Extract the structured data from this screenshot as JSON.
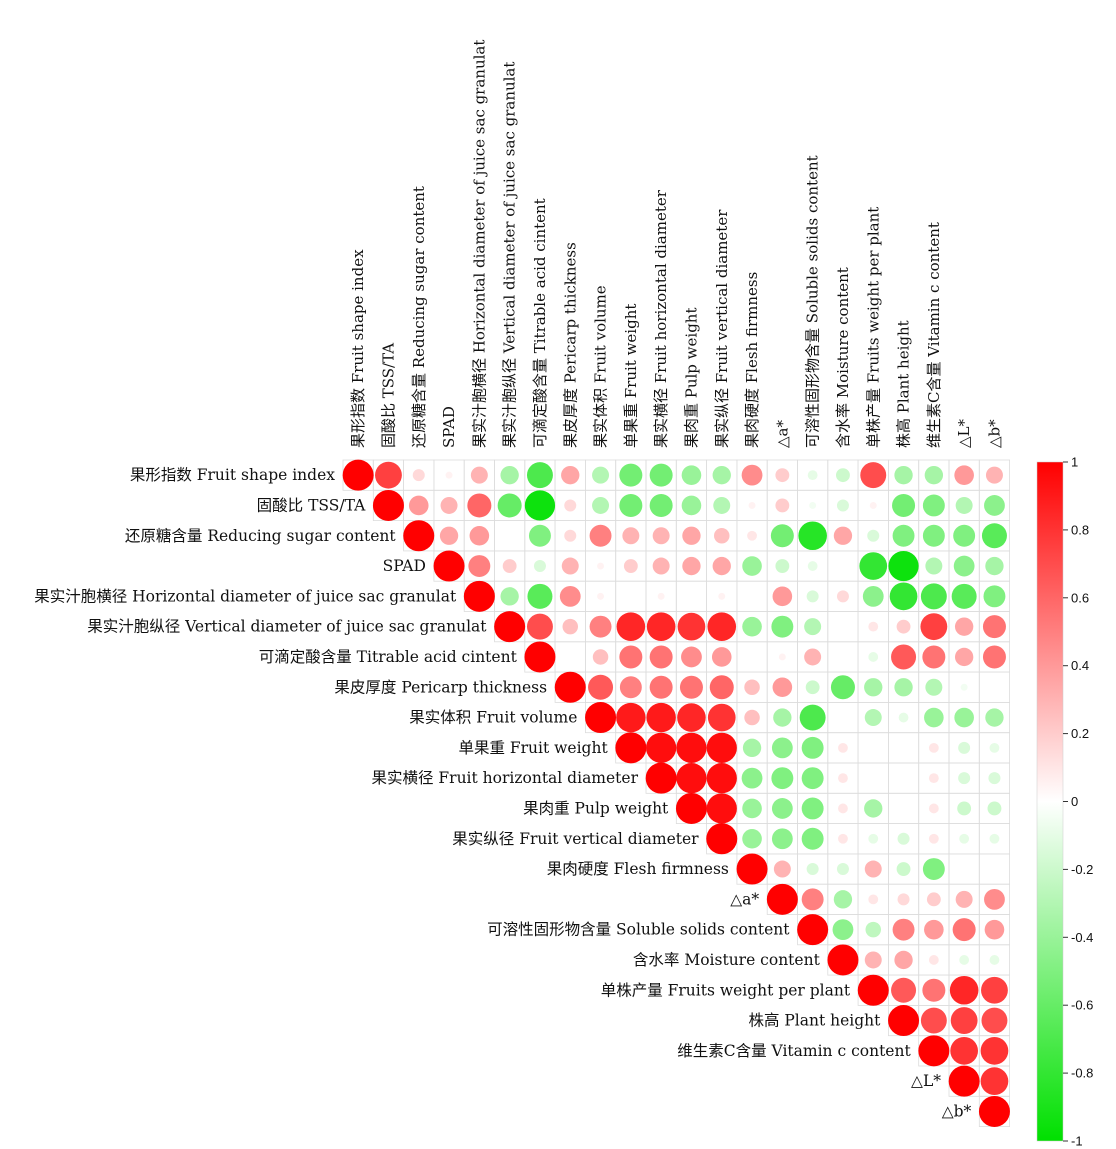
{
  "chart_data": {
    "type": "heatmap",
    "variables": [
      "果形指数 Fruit shape index",
      "固酸比  TSS/TA",
      "还原糖含量 Reducing sugar content",
      "SPAD",
      "果实汁胞横径 Horizontal diameter of juice sac granulat",
      "果实汁胞纵径 Vertical diameter of juice sac granulat",
      "可滴定酸含量 Titrable acid cintent",
      "果皮厚度 Pericarp thickness",
      "果实体积  Fruit volume",
      "单果重  Fruit weight",
      "果实横径 Fruit horizontal diameter",
      "果肉重  Pulp weight",
      "果实纵径 Fruit vertical diameter",
      "果肉硬度  Flesh firmness",
      "△a*",
      "可溶性固形物含量  Soluble solids content",
      "含水率 Moisture content",
      "单株产量 Fruits weight per plant",
      "株高  Plant height",
      "维生素C含量 Vitamin c content",
      "△L*",
      "△b*"
    ],
    "matrix": [
      [
        1,
        0.75,
        0.15,
        0.05,
        0.3,
        -0.35,
        -0.7,
        0.35,
        -0.3,
        -0.55,
        -0.55,
        -0.4,
        -0.35,
        0.45,
        0.2,
        -0.1,
        -0.2,
        0.7,
        -0.35,
        -0.35,
        0.4,
        0.3
      ],
      [
        null,
        1,
        0.4,
        0.3,
        0.6,
        -0.6,
        -0.95,
        0.15,
        -0.3,
        -0.55,
        -0.55,
        -0.4,
        -0.3,
        0.05,
        0.2,
        -0.05,
        -0.15,
        0.05,
        -0.55,
        -0.5,
        -0.3,
        -0.45
      ],
      [
        null,
        null,
        1,
        0.35,
        0.4,
        0,
        -0.5,
        0.15,
        0.5,
        0.3,
        0.3,
        0.35,
        0.25,
        0.1,
        -0.55,
        -0.85,
        0.35,
        -0.15,
        -0.5,
        -0.5,
        -0.5,
        -0.65
      ],
      [
        null,
        null,
        null,
        1,
        0.5,
        0.2,
        -0.15,
        0.3,
        0.05,
        0.2,
        0.3,
        0.35,
        0.35,
        -0.4,
        -0.2,
        -0.1,
        0,
        -0.8,
        -0.95,
        -0.3,
        -0.45,
        -0.35
      ],
      [
        null,
        null,
        null,
        null,
        1,
        -0.35,
        -0.65,
        0.45,
        0.05,
        0,
        0.05,
        0,
        0.05,
        0,
        0.4,
        -0.15,
        0.15,
        -0.45,
        -0.8,
        -0.7,
        -0.65,
        -0.5
      ],
      [
        null,
        null,
        null,
        null,
        null,
        1,
        0.7,
        0.25,
        0.5,
        0.85,
        0.85,
        0.8,
        0.85,
        -0.4,
        -0.5,
        -0.3,
        0,
        0.1,
        0.2,
        0.75,
        0.35,
        0.55
      ],
      [
        null,
        null,
        null,
        null,
        null,
        null,
        1,
        0,
        0.25,
        0.55,
        0.55,
        0.45,
        0.4,
        0,
        0.05,
        0.3,
        0,
        -0.1,
        0.65,
        0.55,
        0.35,
        0.55
      ],
      [
        null,
        null,
        null,
        null,
        null,
        null,
        null,
        1,
        0.65,
        0.5,
        0.55,
        0.55,
        0.6,
        0.25,
        0.4,
        -0.2,
        -0.6,
        -0.35,
        -0.35,
        -0.3,
        -0.05,
        0
      ],
      [
        null,
        null,
        null,
        null,
        null,
        null,
        null,
        null,
        1,
        0.9,
        0.9,
        0.85,
        0.8,
        0.25,
        -0.35,
        -0.7,
        0,
        -0.3,
        -0.1,
        -0.4,
        -0.4,
        -0.35
      ],
      [
        null,
        null,
        null,
        null,
        null,
        null,
        null,
        null,
        null,
        1,
        0.95,
        0.95,
        0.95,
        -0.35,
        -0.45,
        -0.5,
        0.1,
        0,
        0,
        0.1,
        -0.15,
        -0.1
      ],
      [
        null,
        null,
        null,
        null,
        null,
        null,
        null,
        null,
        null,
        null,
        1,
        0.95,
        0.95,
        -0.45,
        -0.5,
        -0.5,
        0.1,
        0,
        0,
        0.1,
        -0.15,
        -0.15
      ],
      [
        null,
        null,
        null,
        null,
        null,
        null,
        null,
        null,
        null,
        null,
        null,
        1,
        0.95,
        -0.4,
        -0.45,
        -0.5,
        0.1,
        -0.35,
        0,
        0.1,
        -0.2,
        -0.2
      ],
      [
        null,
        null,
        null,
        null,
        null,
        null,
        null,
        null,
        null,
        null,
        null,
        null,
        1,
        -0.4,
        -0.45,
        -0.5,
        0.1,
        -0.1,
        -0.15,
        0.1,
        -0.1,
        -0.1
      ],
      [
        null,
        null,
        null,
        null,
        null,
        null,
        null,
        null,
        null,
        null,
        null,
        null,
        null,
        1,
        0.3,
        -0.15,
        -0.15,
        0.3,
        -0.2,
        -0.5,
        0,
        0
      ],
      [
        null,
        null,
        null,
        null,
        null,
        null,
        null,
        null,
        null,
        null,
        null,
        null,
        null,
        null,
        1,
        0.5,
        -0.35,
        0.1,
        0.15,
        0.2,
        0.3,
        0.45
      ],
      [
        null,
        null,
        null,
        null,
        null,
        null,
        null,
        null,
        null,
        null,
        null,
        null,
        null,
        null,
        null,
        1,
        -0.45,
        -0.25,
        0.5,
        0.4,
        0.55,
        0.4
      ],
      [
        null,
        null,
        null,
        null,
        null,
        null,
        null,
        null,
        null,
        null,
        null,
        null,
        null,
        null,
        null,
        null,
        1,
        0.3,
        0.35,
        0.1,
        -0.1,
        -0.1
      ],
      [
        null,
        null,
        null,
        null,
        null,
        null,
        null,
        null,
        null,
        null,
        null,
        null,
        null,
        null,
        null,
        null,
        null,
        1,
        0.65,
        0.55,
        0.85,
        0.75
      ],
      [
        null,
        null,
        null,
        null,
        null,
        null,
        null,
        null,
        null,
        null,
        null,
        null,
        null,
        null,
        null,
        null,
        null,
        null,
        1,
        0.7,
        0.75,
        0.7
      ],
      [
        null,
        null,
        null,
        null,
        null,
        null,
        null,
        null,
        null,
        null,
        null,
        null,
        null,
        null,
        null,
        null,
        null,
        null,
        null,
        1,
        0.8,
        0.8
      ],
      [
        null,
        null,
        null,
        null,
        null,
        null,
        null,
        null,
        null,
        null,
        null,
        null,
        null,
        null,
        null,
        null,
        null,
        null,
        null,
        null,
        1,
        0.8
      ],
      [
        null,
        null,
        null,
        null,
        null,
        null,
        null,
        null,
        null,
        null,
        null,
        null,
        null,
        null,
        null,
        null,
        null,
        null,
        null,
        null,
        null,
        1
      ]
    ],
    "color_scale": {
      "range": [
        -1,
        1
      ],
      "ticks": [
        1,
        0.8,
        0.6,
        0.4,
        0.2,
        0,
        -0.2,
        -0.4,
        -0.6,
        -0.8,
        -1
      ],
      "colors": {
        "negative": "#00e000",
        "zero": "#ffffff",
        "positive": "#ff0000"
      }
    },
    "legend": "right",
    "grid": true,
    "triangle": "upper"
  }
}
